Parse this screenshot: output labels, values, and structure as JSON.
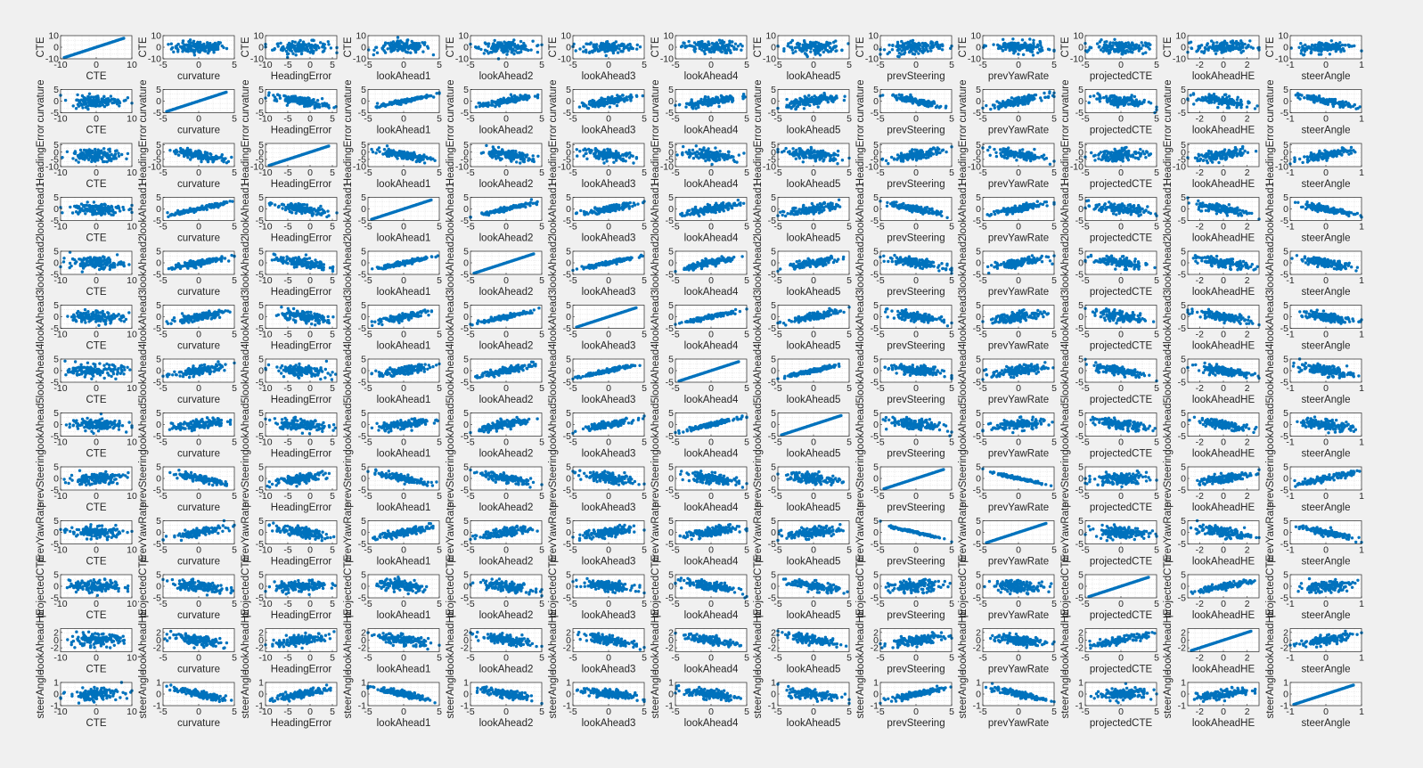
{
  "figure": {
    "background": "#f0f0f0",
    "axes_background": "#ffffff",
    "marker_color": "#0072BD",
    "grid_color": "#dcdcdc",
    "axis_color": "#262626"
  },
  "chart_data": {
    "type": "scatter",
    "layout": "scatter-matrix",
    "grid": true,
    "columns": [
      "CTE",
      "curvature",
      "HeadingError",
      "lookAhead1",
      "lookAhead2",
      "lookAhead3",
      "lookAhead4",
      "lookAhead5",
      "prevSteering",
      "prevYawRate",
      "projectedCTE",
      "lookAheadHE",
      "steerAngle"
    ],
    "x_axes": [
      {
        "label": "CTE",
        "xlim": [
          -10,
          10
        ],
        "xticks": [
          "-10",
          "0",
          "10"
        ]
      },
      {
        "label": "curvature",
        "xlim": [
          -5,
          5
        ],
        "xticks": [
          "-5",
          "0",
          "5"
        ]
      },
      {
        "label": "HeadingError",
        "xlim": [
          -10,
          6
        ],
        "xticks": [
          "-10",
          "-5",
          "0",
          "5"
        ]
      },
      {
        "label": "lookAhead1",
        "xlim": [
          -5,
          5
        ],
        "xticks": [
          "-5",
          "0",
          "5"
        ]
      },
      {
        "label": "lookAhead2",
        "xlim": [
          -5,
          5
        ],
        "xticks": [
          "-5",
          "0",
          "5"
        ]
      },
      {
        "label": "lookAhead3",
        "xlim": [
          -5,
          5
        ],
        "xticks": [
          "-5",
          "0",
          "5"
        ]
      },
      {
        "label": "lookAhead4",
        "xlim": [
          -5,
          5
        ],
        "xticks": [
          "-5",
          "0",
          "5"
        ]
      },
      {
        "label": "lookAhead5",
        "xlim": [
          -5,
          5
        ],
        "xticks": [
          "-5",
          "0",
          "5"
        ]
      },
      {
        "label": "prevSteering",
        "xlim": [
          -5,
          5
        ],
        "xticks": [
          "-5",
          "0",
          "5"
        ]
      },
      {
        "label": "prevYawRate",
        "xlim": [
          -5,
          5
        ],
        "xticks": [
          "-5",
          "0",
          "5"
        ]
      },
      {
        "label": "projectedCTE",
        "xlim": [
          -5,
          5
        ],
        "xticks": [
          "-5",
          "0",
          "5"
        ]
      },
      {
        "label": "lookAheadHE",
        "xlim": [
          -3,
          3
        ],
        "xticks": [
          "-2",
          "0",
          "2"
        ]
      },
      {
        "label": "steerAngle",
        "xlim": [
          -1,
          1
        ],
        "xticks": [
          "-1",
          "0",
          "1"
        ]
      }
    ],
    "y_axes": [
      {
        "label": "CTE",
        "ylim": [
          -10,
          10
        ],
        "yticks": [
          "-10",
          "0",
          "10"
        ]
      },
      {
        "label": "curvature",
        "ylim": [
          -5,
          5
        ],
        "yticks": [
          "-5",
          "0",
          "5"
        ]
      },
      {
        "label": "HeadingError",
        "ylim": [
          -10,
          6
        ],
        "yticks": [
          "-10",
          "-5",
          "0",
          "5"
        ]
      },
      {
        "label": "lookAhead1",
        "ylim": [
          -5,
          5
        ],
        "yticks": [
          "-5",
          "0",
          "5"
        ]
      },
      {
        "label": "lookAhead2",
        "ylim": [
          -5,
          5
        ],
        "yticks": [
          "-5",
          "0",
          "5"
        ]
      },
      {
        "label": "lookAhead3",
        "ylim": [
          -5,
          5
        ],
        "yticks": [
          "-5",
          "0",
          "5"
        ]
      },
      {
        "label": "lookAhead4",
        "ylim": [
          -5,
          5
        ],
        "yticks": [
          "-5",
          "0",
          "5"
        ]
      },
      {
        "label": "lookAhead5",
        "ylim": [
          -5,
          5
        ],
        "yticks": [
          "-5",
          "0",
          "5"
        ]
      },
      {
        "label": "prevSteering",
        "ylim": [
          -5,
          5
        ],
        "yticks": [
          "-5",
          "0",
          "5"
        ]
      },
      {
        "label": "prevYawRate",
        "ylim": [
          -5,
          5
        ],
        "yticks": [
          "-5",
          "0",
          "5"
        ]
      },
      {
        "label": "projectedCTE",
        "ylim": [
          -5,
          5
        ],
        "yticks": [
          "-5",
          "0",
          "5"
        ]
      },
      {
        "label": "lookAheadHE",
        "ylim": [
          -3,
          3
        ],
        "yticks": [
          "-2",
          "0",
          "2"
        ]
      },
      {
        "label": "steerAngle",
        "ylim": [
          -1,
          1
        ],
        "yticks": [
          "-1",
          "0",
          "1"
        ]
      }
    ],
    "correlation_sign": [
      [
        1,
        0.05,
        0.05,
        0,
        0,
        0,
        0,
        0,
        0.25,
        -0.2,
        0,
        0.05,
        0.3
      ],
      [
        0.05,
        1,
        -0.7,
        0.95,
        0.85,
        0.75,
        0.7,
        0.6,
        -0.85,
        0.8,
        -0.5,
        -0.55,
        -0.85
      ],
      [
        0.05,
        -0.7,
        1,
        -0.7,
        -0.6,
        -0.5,
        -0.4,
        -0.35,
        0.7,
        -0.6,
        0.3,
        0.6,
        0.75
      ],
      [
        0,
        0.95,
        -0.7,
        1,
        0.95,
        0.85,
        0.75,
        0.65,
        -0.85,
        0.8,
        -0.5,
        -0.6,
        -0.85
      ],
      [
        0,
        0.85,
        -0.6,
        0.95,
        1,
        0.95,
        0.85,
        0.75,
        -0.75,
        0.7,
        -0.55,
        -0.65,
        -0.75
      ],
      [
        0,
        0.75,
        -0.5,
        0.85,
        0.95,
        1,
        0.95,
        0.85,
        -0.6,
        0.6,
        -0.6,
        -0.7,
        -0.6
      ],
      [
        0,
        0.7,
        -0.4,
        0.75,
        0.85,
        0.95,
        1,
        0.95,
        -0.5,
        0.5,
        -0.65,
        -0.7,
        -0.5
      ],
      [
        0,
        0.6,
        -0.35,
        0.65,
        0.75,
        0.85,
        0.95,
        1,
        -0.4,
        0.4,
        -0.65,
        -0.75,
        -0.4
      ],
      [
        0.25,
        -0.85,
        0.7,
        -0.85,
        -0.75,
        -0.6,
        -0.5,
        -0.4,
        1,
        -1,
        0.2,
        0.6,
        0.9
      ],
      [
        -0.2,
        0.8,
        -0.6,
        0.8,
        0.7,
        0.6,
        0.5,
        0.4,
        -1,
        1,
        -0.2,
        -0.5,
        -0.85
      ],
      [
        0,
        -0.5,
        0.3,
        -0.5,
        -0.55,
        -0.6,
        -0.65,
        -0.65,
        0.2,
        -0.2,
        1,
        0.85,
        0.3
      ],
      [
        0.05,
        -0.55,
        0.6,
        -0.6,
        -0.65,
        -0.7,
        -0.7,
        -0.75,
        0.6,
        -0.5,
        0.85,
        1,
        0.65
      ],
      [
        0.3,
        -0.85,
        0.75,
        -0.85,
        -0.75,
        -0.6,
        -0.5,
        -0.4,
        0.9,
        -0.85,
        0.3,
        0.65,
        1
      ]
    ]
  }
}
